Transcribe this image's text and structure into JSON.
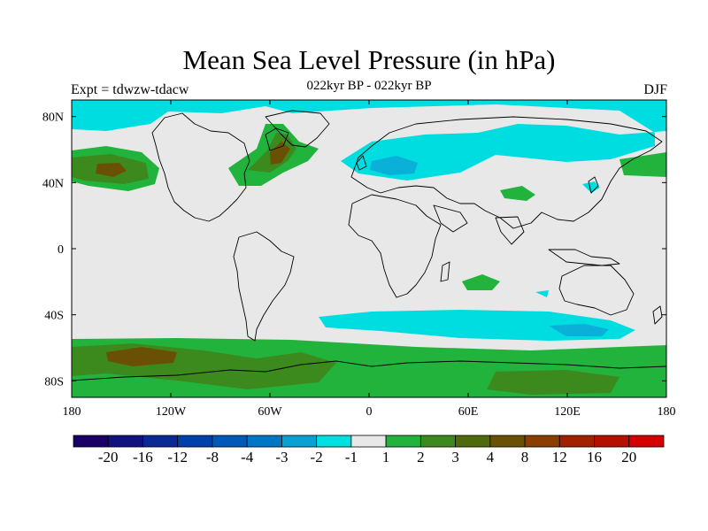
{
  "header": {
    "title": "Mean Sea Level Pressure (in hPa)",
    "subtitle": "022kyr BP - 022kyr BP",
    "left_label": "Expt = tdwzw-tdacw",
    "right_label": "DJF"
  },
  "map": {
    "lon_range": [
      -180,
      180
    ],
    "lat_range": [
      -90,
      90
    ],
    "x_ticks": [
      {
        "value": -180,
        "label": "180"
      },
      {
        "value": -120,
        "label": "120W"
      },
      {
        "value": -60,
        "label": "60W"
      },
      {
        "value": 0,
        "label": "0"
      },
      {
        "value": 60,
        "label": "60E"
      },
      {
        "value": 120,
        "label": "120E"
      },
      {
        "value": 180,
        "label": "180"
      }
    ],
    "y_ticks": [
      {
        "value": 80,
        "label": "80N"
      },
      {
        "value": 40,
        "label": "40N"
      },
      {
        "value": 0,
        "label": "0"
      },
      {
        "value": -40,
        "label": "40S"
      },
      {
        "value": -80,
        "label": "80S"
      }
    ],
    "background_color": "#e8e8e8"
  },
  "colorbar": {
    "colors": [
      "#1a0066",
      "#12127f",
      "#0a2a96",
      "#0040aa",
      "#0058b8",
      "#0077c4",
      "#0aa0d4",
      "#00e0e0",
      "#e8e8e8",
      "#22b33c",
      "#3c8a1e",
      "#4f6a0a",
      "#6a5004",
      "#8a3e00",
      "#a02000",
      "#b41000",
      "#d40000"
    ],
    "labels": [
      "-20",
      "-16",
      "-12",
      "-8",
      "-4",
      "-3",
      "-2",
      "-1",
      "1",
      "2",
      "3",
      "4",
      "8",
      "12",
      "16",
      "20"
    ]
  }
}
